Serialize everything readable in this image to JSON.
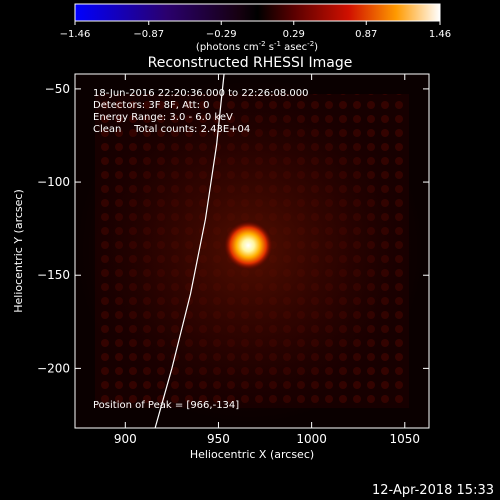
{
  "chart_data": {
    "type": "heatmap",
    "title": "Reconstructed RHESSI Image",
    "xlabel": "Heliocentric X (arcsec)",
    "ylabel": "Heliocentric Y (arcsec)",
    "xlim": [
      873,
      1063
    ],
    "ylim": [
      -232,
      -42
    ],
    "x_ticks": [
      900,
      950,
      1000,
      1050
    ],
    "y_ticks": [
      -50,
      -100,
      -150,
      -200
    ],
    "colorbar": {
      "label_prefix": "(photons cm",
      "label_sup1": "-2",
      "label_mid": " s",
      "label_sup2": "-1",
      "label_mid2": " asec",
      "label_sup3": "-2",
      "label_suffix": ")",
      "range": [
        -1.46,
        1.46
      ],
      "ticks": [
        "-1.46",
        "-0.87",
        "-0.29",
        "0.29",
        "0.87",
        "1.46"
      ]
    },
    "annotations": [
      "18-Jun-2016 22:20:36.000 to 22:26:08.000",
      "Detectors: 3F 8F, Att: 0",
      "Energy Range: 3.0 - 6.0 keV",
      "Clean    Total counts: 2.43E+04"
    ],
    "peak": {
      "label": "Position of Peak = [966,-134]",
      "x": 966,
      "y": -134,
      "value": 1.46
    },
    "limb_curve": [
      {
        "x": 916,
        "y": -232
      },
      {
        "x": 925,
        "y": -200
      },
      {
        "x": 935,
        "y": -160
      },
      {
        "x": 943,
        "y": -120
      },
      {
        "x": 949,
        "y": -80
      },
      {
        "x": 953,
        "y": -42
      }
    ]
  },
  "footer": {
    "date": "12-Apr-2018 15:33"
  }
}
